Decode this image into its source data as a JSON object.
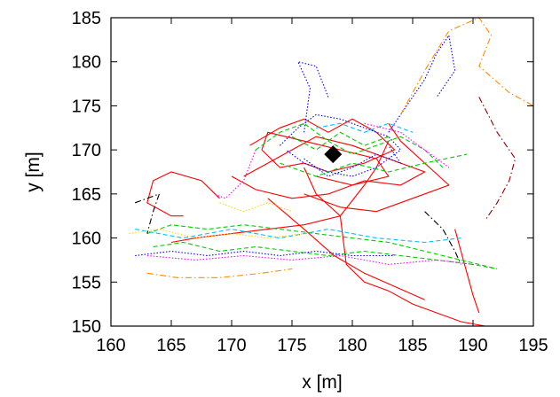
{
  "chart_data": {
    "type": "line",
    "title": "",
    "xlabel": "x [m]",
    "ylabel": "y [m]",
    "xlim": [
      160,
      195
    ],
    "ylim": [
      150,
      185
    ],
    "xticks": [
      "160",
      "165",
      "170",
      "175",
      "180",
      "185",
      "190",
      "195"
    ],
    "yticks": [
      "150",
      "155",
      "160",
      "165",
      "170",
      "175",
      "180",
      "185"
    ],
    "grid": false,
    "legend": "none",
    "colors": [
      "#ff0000",
      "#00cc00",
      "#0000ff",
      "#ff00ff",
      "#00bfff",
      "#ffd700",
      "#000000",
      "#ff8c00",
      "#8b0000"
    ],
    "marker": {
      "shape": "diamond",
      "x": 178.4,
      "y": 169.5,
      "color": "#000000"
    },
    "series": [
      {
        "color": "#ff0000",
        "style": "solid",
        "x": [
          171.5,
          174,
          176,
          178,
          180,
          182,
          183.5,
          181,
          178,
          176,
          174,
          172.5,
          173,
          176,
          179,
          182,
          183,
          180,
          177
        ],
        "y": [
          170.5,
          172.5,
          173.5,
          172,
          173.5,
          172,
          170,
          168.5,
          167.5,
          168.5,
          168,
          170,
          172,
          171,
          170,
          169,
          167,
          166,
          167
        ]
      },
      {
        "color": "#ff0000",
        "style": "solid",
        "x": [
          170,
          172,
          175,
          178,
          181,
          184,
          186,
          183,
          180,
          177,
          175,
          173,
          171
        ],
        "y": [
          167,
          165.5,
          164.5,
          165,
          166.5,
          166,
          167.5,
          169,
          170.5,
          171.5,
          170,
          168.5,
          167
        ]
      },
      {
        "color": "#ff0000",
        "style": "solid",
        "x": [
          176,
          179,
          182,
          185,
          188,
          186,
          184,
          183
        ],
        "y": [
          165,
          163.5,
          163,
          164.5,
          166,
          168.5,
          171,
          173
        ]
      },
      {
        "color": "#ff0000",
        "style": "solid",
        "x": [
          183,
          182,
          181,
          179,
          176,
          173,
          170,
          167,
          165
        ],
        "y": [
          171,
          168,
          166,
          162.5,
          161.5,
          161,
          160.5,
          160,
          159.5
        ]
      },
      {
        "color": "#ff0000",
        "style": "solid",
        "x": [
          173,
          176,
          178.5,
          181,
          183.5,
          186
        ],
        "y": [
          164.5,
          161,
          158,
          156,
          154.5,
          153
        ]
      },
      {
        "color": "#ff0000",
        "style": "solid",
        "x": [
          176,
          177,
          179,
          179.5,
          181,
          183,
          185,
          187,
          189,
          191
        ],
        "y": [
          168,
          165,
          162.5,
          157,
          155,
          154,
          152.5,
          151.5,
          150.5,
          150
        ]
      },
      {
        "color": "#ff0000",
        "style": "solid",
        "x": [
          169,
          167.5,
          165,
          163.5,
          163,
          165,
          166
        ],
        "y": [
          164.5,
          166.5,
          167.5,
          166.5,
          164,
          162.5,
          162.5
        ]
      },
      {
        "color": "#ff0000",
        "style": "solid",
        "x": [
          190.5,
          190,
          189.5,
          189,
          188.5
        ],
        "y": [
          151.5,
          153.5,
          156,
          158.5,
          161
        ]
      },
      {
        "color": "#00cc00",
        "style": "dashed",
        "x": [
          163,
          165,
          168,
          171,
          174,
          177,
          180,
          183,
          186,
          189,
          192
        ],
        "y": [
          160.5,
          161.5,
          161,
          161.5,
          161,
          160.5,
          160,
          159.5,
          158.5,
          157.5,
          156.5
        ]
      },
      {
        "color": "#00cc00",
        "style": "dashed",
        "x": [
          172,
          174,
          176,
          178,
          180,
          182,
          184,
          186,
          187.5
        ],
        "y": [
          170,
          172,
          173,
          171,
          169.5,
          170.5,
          171.5,
          170,
          168
        ]
      },
      {
        "color": "#00cc00",
        "style": "dashed",
        "x": [
          163.5,
          166,
          169,
          172,
          175,
          178,
          181,
          184,
          187,
          190,
          192
        ],
        "y": [
          159,
          159.5,
          158.5,
          159,
          158.5,
          158,
          158.5,
          158,
          157.5,
          157,
          156.5
        ]
      },
      {
        "color": "#00cc00",
        "style": "dashed",
        "x": [
          174,
          177,
          180,
          183,
          186,
          189.5
        ],
        "y": [
          168.5,
          167,
          168.5,
          167.5,
          168.5,
          169.5
        ]
      },
      {
        "color": "#00cc00",
        "style": "dashed",
        "x": [
          175,
          177,
          179,
          181,
          183
        ],
        "y": [
          171.5,
          170,
          172,
          170.5,
          171.5
        ]
      },
      {
        "color": "#0000ff",
        "style": "dotted",
        "x": [
          174,
          175.5,
          177,
          179,
          181,
          183,
          184,
          182,
          180,
          178,
          176,
          174.5
        ],
        "y": [
          170.5,
          172.5,
          174,
          173.5,
          172.5,
          171.5,
          170,
          168,
          167,
          167.5,
          168.5,
          170
        ]
      },
      {
        "color": "#0000ff",
        "style": "dotted",
        "x": [
          176,
          176.5,
          175.5,
          177,
          178
        ],
        "y": [
          172,
          177,
          180,
          179.5,
          176
        ]
      },
      {
        "color": "#0000ff",
        "style": "dotted",
        "x": [
          183,
          184.5,
          186,
          187,
          188,
          188.5,
          187
        ],
        "y": [
          172,
          175,
          178,
          181,
          183,
          179,
          176
        ]
      },
      {
        "color": "#0000ff",
        "style": "dotted",
        "x": [
          162,
          165,
          168,
          171,
          174,
          177,
          180,
          183.5
        ],
        "y": [
          158,
          158.5,
          158,
          158.5,
          158,
          158.5,
          158,
          158
        ]
      },
      {
        "color": "#0000ff",
        "style": "dotted",
        "x": [
          176,
          178,
          180,
          182,
          184,
          183
        ],
        "y": [
          169,
          167,
          168,
          169.5,
          168.5,
          170.5
        ]
      },
      {
        "color": "#ff00ff",
        "style": "dotted",
        "x": [
          163,
          167,
          171,
          175,
          179,
          183,
          187,
          190
        ],
        "y": [
          158,
          157.5,
          158,
          157.5,
          158,
          157,
          157.5,
          157
        ]
      },
      {
        "color": "#ff00ff",
        "style": "dotted",
        "x": [
          181,
          184,
          186,
          188
        ],
        "y": [
          173,
          172,
          170,
          168
        ]
      },
      {
        "color": "#ff00ff",
        "style": "dotted",
        "x": [
          172,
          171,
          169.5,
          168.5
        ],
        "y": [
          170,
          166.5,
          164.5,
          165
        ]
      },
      {
        "color": "#00bfff",
        "style": "dashed",
        "x": [
          162,
          166,
          170,
          174,
          178,
          182,
          186,
          189
        ],
        "y": [
          161,
          160,
          161,
          160,
          161,
          160,
          159.5,
          160
        ]
      },
      {
        "color": "#00bfff",
        "style": "dashed",
        "x": [
          177,
          179,
          181,
          183,
          185
        ],
        "y": [
          172.5,
          173,
          172,
          173,
          172
        ]
      },
      {
        "color": "#ffd700",
        "style": "dotted",
        "x": [
          161.5,
          164,
          167,
          170,
          173,
          176
        ],
        "y": [
          160.5,
          161,
          160,
          160.5,
          160,
          160.5
        ]
      },
      {
        "color": "#ffd700",
        "style": "dotted",
        "x": [
          169,
          171,
          173,
          175
        ],
        "y": [
          164,
          163,
          164,
          163
        ]
      },
      {
        "color": "#000000",
        "style": "dashdot",
        "x": [
          162,
          164,
          163.5,
          163
        ],
        "y": [
          164,
          165,
          163,
          160.5
        ]
      },
      {
        "color": "#000000",
        "style": "dashdot",
        "x": [
          186,
          187.5,
          188.5,
          189
        ],
        "y": [
          163,
          161,
          158.5,
          157
        ]
      },
      {
        "color": "#ff8c00",
        "style": "dashdot",
        "x": [
          184,
          186,
          188,
          190.5,
          191.5,
          190.5,
          193,
          195
        ],
        "y": [
          174,
          179,
          183.5,
          185,
          183,
          179.5,
          176.5,
          175
        ]
      },
      {
        "color": "#ff8c00",
        "style": "dashdot",
        "x": [
          163,
          165.5,
          169,
          172.5,
          175
        ],
        "y": [
          156,
          155.5,
          155.5,
          156,
          156.5
        ]
      },
      {
        "color": "#8b0000",
        "style": "dashdot",
        "x": [
          190.5,
          192,
          193.5,
          193,
          192,
          191
        ],
        "y": [
          176,
          172,
          169,
          166.5,
          164,
          162
        ]
      }
    ]
  }
}
